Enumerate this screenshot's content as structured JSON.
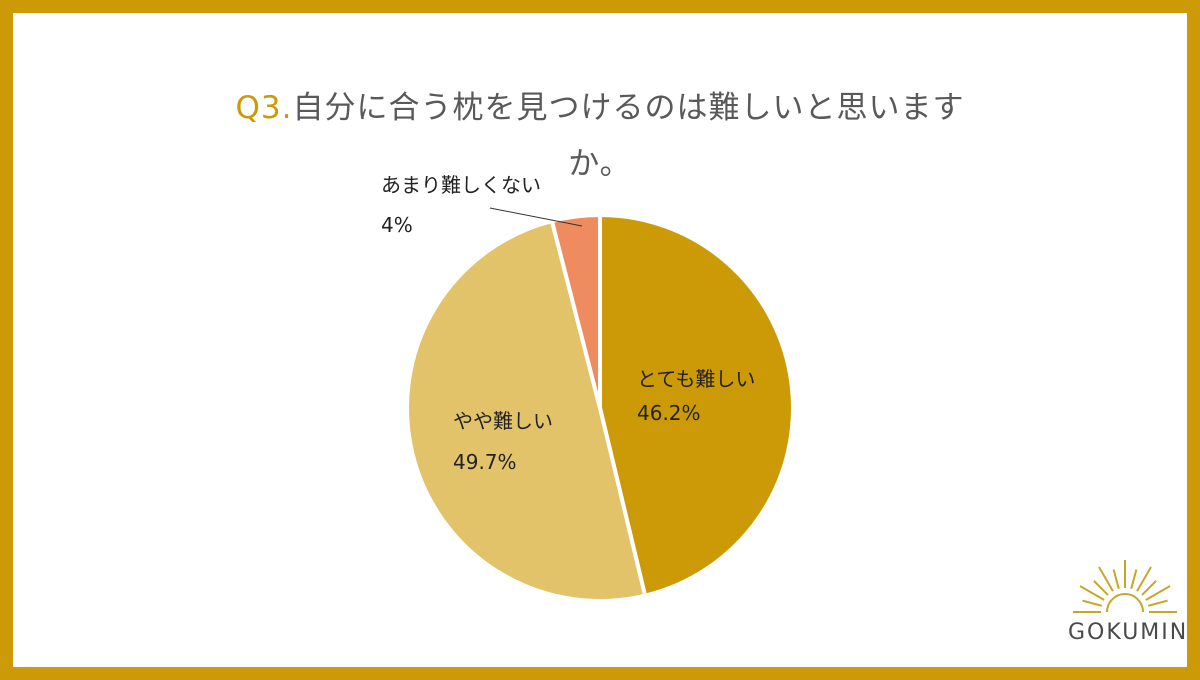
{
  "title": {
    "prefix": "Q3.",
    "line1": "自分に合う枕を見つけるのは難しいと思います",
    "line2": "か。"
  },
  "brand": {
    "name": "GOKUMIN"
  },
  "colors": {
    "frame": "#CC9A06",
    "title_prefix": "#CC9A06"
  },
  "chart_data": {
    "type": "pie",
    "slices": [
      {
        "label": "とても難しい",
        "value": 46.2,
        "value_label": "46.2%",
        "color": "#CC9A06"
      },
      {
        "label": "やや難しい",
        "value": 49.7,
        "value_label": "49.7%",
        "color": "#E3C369"
      },
      {
        "label": "あまり難しくない",
        "value": 4,
        "value_label": "4%",
        "color": "#EE8C5F"
      }
    ],
    "start_angle": "12 o'clock",
    "direction": "clockwise",
    "legend": "none"
  }
}
